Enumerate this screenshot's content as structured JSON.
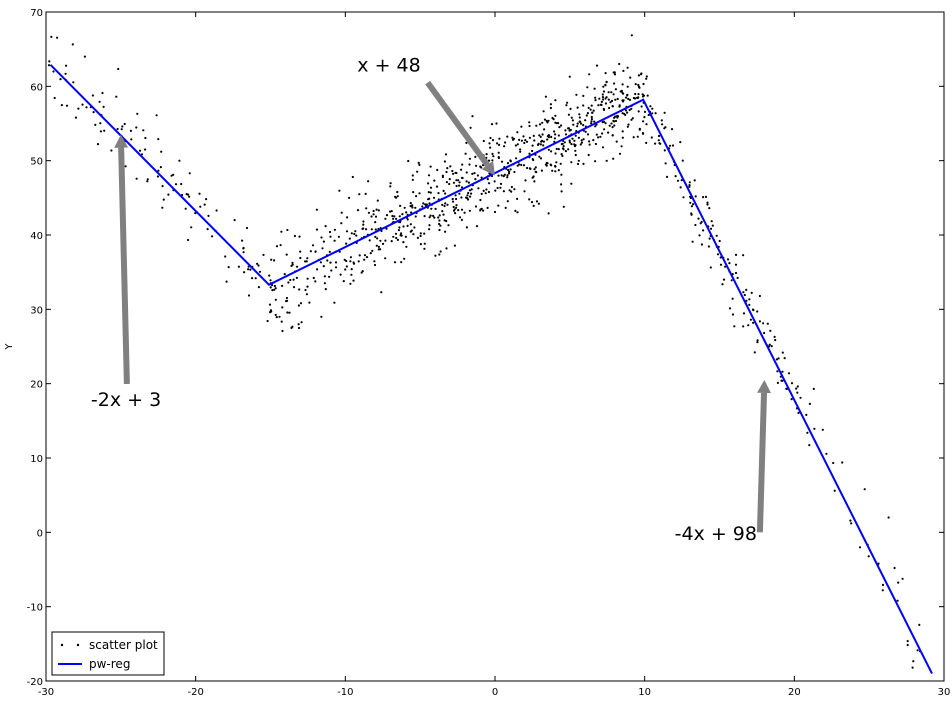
{
  "chart_data": {
    "type": "scatter",
    "title": "",
    "xlabel": "",
    "ylabel": "Y",
    "xlim": [
      -30,
      30
    ],
    "ylim": [
      -20,
      70
    ],
    "x_ticks": [
      -30,
      -20,
      -10,
      0,
      10,
      20,
      30
    ],
    "y_ticks": [
      -20,
      -10,
      0,
      10,
      20,
      30,
      40,
      50,
      60,
      70
    ],
    "grid": false,
    "legend_position": "bottom-left",
    "series": [
      {
        "name": "scatter plot",
        "kind": "scatter",
        "color": "#000000",
        "sampling": {
          "seed": 7,
          "x_min": -29.8,
          "x_max": 28.8,
          "noise_sd": 3.0,
          "count_note": "dense cloud around the piecewise line"
        },
        "points": [
          [
            -29.5,
            62.0
          ],
          [
            -28.6,
            57.4
          ],
          [
            -27.4,
            64.0
          ],
          [
            -27.0,
            57.2
          ],
          [
            -25.3,
            58.6
          ],
          [
            -24.9,
            54.6
          ],
          [
            -23.9,
            56.3
          ],
          [
            -23.2,
            47.5
          ],
          [
            -22.5,
            52.9
          ],
          [
            -22.3,
            51.2
          ],
          [
            -21.5,
            48.1
          ],
          [
            -20.6,
            45.5
          ],
          [
            -20.4,
            48.3
          ],
          [
            -19.2,
            40.8
          ],
          [
            -18.6,
            43.3
          ],
          [
            -17.4,
            42.0
          ],
          [
            -16.5,
            35.4
          ],
          [
            -15.8,
            35.9
          ],
          [
            -15.0,
            33.9
          ],
          [
            -14.4,
            29.0
          ],
          [
            -13.6,
            27.5
          ],
          [
            -12.4,
            30.9
          ],
          [
            -11.9,
            43.4
          ],
          [
            -11.6,
            29.0
          ],
          [
            -10.1,
            33.8
          ],
          [
            -9.5,
            47.8
          ],
          [
            -7.6,
            32.3
          ],
          [
            -5.1,
            49.7
          ],
          [
            -4.3,
            49.2
          ],
          [
            -1.2,
            41.2
          ],
          [
            0.1,
            55.0
          ],
          [
            3.4,
            58.6
          ],
          [
            4.6,
            43.8
          ],
          [
            5.0,
            61.3
          ],
          [
            8.3,
            63.0
          ],
          [
            9.4,
            60.3
          ],
          [
            10.7,
            52.3
          ],
          [
            12.4,
            46.4
          ],
          [
            13.2,
            39.1
          ],
          [
            13.6,
            42.2
          ],
          [
            14.2,
            44.1
          ],
          [
            14.9,
            37.4
          ],
          [
            15.3,
            34.0
          ],
          [
            15.9,
            29.3
          ],
          [
            16.1,
            36.0
          ],
          [
            16.6,
            32.3
          ],
          [
            17.1,
            28.6
          ],
          [
            17.7,
            31.8
          ],
          [
            18.3,
            25.0
          ],
          [
            18.9,
            20.1
          ],
          [
            19.5,
            19.3
          ],
          [
            20.2,
            18.8
          ],
          [
            20.8,
            15.8
          ],
          [
            21.3,
            19.3
          ],
          [
            21.9,
            13.8
          ],
          [
            22.7,
            5.6
          ],
          [
            23.2,
            9.4
          ],
          [
            23.8,
            1.2
          ],
          [
            24.7,
            5.8
          ],
          [
            26.3,
            2.0
          ],
          [
            26.7,
            -4.8
          ],
          [
            27.9,
            -18.2
          ],
          [
            28.4,
            -16.0
          ]
        ]
      },
      {
        "name": "pw-reg",
        "kind": "line",
        "color": "#0000ff",
        "x": [
          -29.7,
          -15.1,
          9.9,
          29.2
        ],
        "y": [
          62.9,
          33.3,
          58.2,
          -19.0
        ]
      }
    ],
    "annotations": [
      {
        "text": "-2x + 3",
        "text_xy": [
          -27.0,
          17.0
        ],
        "arrow_to": [
          -25.0,
          53.5
        ]
      },
      {
        "text": "x + 48",
        "text_xy": [
          -9.2,
          62.0
        ],
        "arrow_tail": [
          -4.5,
          60.5
        ],
        "arrow_to": [
          0.0,
          48.0
        ]
      },
      {
        "text": "-4x + 98",
        "text_xy": [
          12.0,
          -1.0
        ],
        "arrow_tail": [
          17.7,
          0.0
        ],
        "arrow_to": [
          18.0,
          20.5
        ]
      }
    ]
  }
}
